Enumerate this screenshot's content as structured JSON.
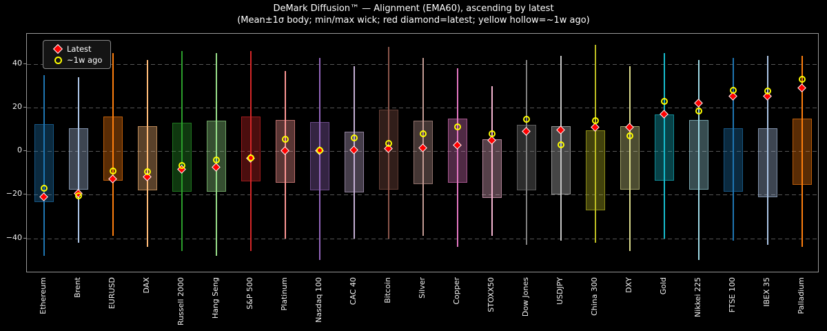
{
  "title": "DeMark Diffusion™ — Alignment (EMA60), ascending by latest",
  "subtitle": "(Mean±1σ body; min/max wick; red diamond=latest; yellow hollow=~1w ago)",
  "legend": {
    "latest_label": "Latest",
    "week_ago_label": "~1w ago"
  },
  "colors": {
    "background": "#000000",
    "text": "#ffffff",
    "grid": "#585858",
    "frame": "#9a9a9a",
    "latest_marker": "#ff0000",
    "latest_marker_edge": "#ffffff",
    "week_ago_marker": "#ffff00"
  },
  "chart_data": {
    "type": "candlestick",
    "title": "DeMark Diffusion™ — Alignment (EMA60), ascending by latest",
    "subtitle": "(Mean±1σ body; min/max wick; red diamond=latest; yellow hollow=~1w ago)",
    "legend_position": "upper left",
    "grid": "dashed horizontal at yticks",
    "ylim": [
      -56,
      54
    ],
    "yticks": [
      {
        "v": 40,
        "label": "40"
      },
      {
        "v": 20,
        "label": "20"
      },
      {
        "v": 0,
        "label": "0"
      },
      {
        "v": -20,
        "label": "−20"
      },
      {
        "v": -40,
        "label": "−40"
      }
    ],
    "series": [
      {
        "name": "Ethereum",
        "color": "#1f77b4",
        "min": -48,
        "max": 35,
        "body_low": -23.5,
        "body_high": 12.5,
        "latest": -21,
        "week_ago": -17
      },
      {
        "name": "Brent",
        "color": "#aec7e8",
        "min": -42,
        "max": 34,
        "body_low": -17.5,
        "body_high": 10.5,
        "latest": -19.5,
        "week_ago": -20.5
      },
      {
        "name": "EURUSD",
        "color": "#ff7f0e",
        "min": -39,
        "max": 45,
        "body_low": -13.5,
        "body_high": 16,
        "latest": -13,
        "week_ago": -9
      },
      {
        "name": "DAX",
        "color": "#ffbb78",
        "min": -44,
        "max": 42,
        "body_low": -18,
        "body_high": 11.5,
        "latest": -12,
        "week_ago": -9.5
      },
      {
        "name": "Russell 2000",
        "color": "#2ca02c",
        "min": -46,
        "max": 46,
        "body_low": -18.5,
        "body_high": 13,
        "latest": -8.5,
        "week_ago": -6.5
      },
      {
        "name": "Hang Seng",
        "color": "#98df8a",
        "min": -48,
        "max": 45,
        "body_low": -18.5,
        "body_high": 14,
        "latest": -7.5,
        "week_ago": -4
      },
      {
        "name": "S&P 500",
        "color": "#d62728",
        "min": -46,
        "max": 46,
        "body_low": -14,
        "body_high": 16,
        "latest": -3.5,
        "week_ago": -3
      },
      {
        "name": "Platinum",
        "color": "#ff9896",
        "min": -40,
        "max": 37,
        "body_low": -14.5,
        "body_high": 14.5,
        "latest": 0,
        "week_ago": 5.5
      },
      {
        "name": "Nasdaq 100",
        "color": "#9467bd",
        "min": -50,
        "max": 43,
        "body_low": -18,
        "body_high": 13.5,
        "latest": 0,
        "week_ago": 0.5
      },
      {
        "name": "CAC 40",
        "color": "#c5b0d5",
        "min": -40,
        "max": 39,
        "body_low": -19,
        "body_high": 9,
        "latest": 0.5,
        "week_ago": 6
      },
      {
        "name": "Bitcoin",
        "color": "#8c564b",
        "min": -40,
        "max": 48,
        "body_low": -17.5,
        "body_high": 19,
        "latest": 1,
        "week_ago": 3.5
      },
      {
        "name": "Silver",
        "color": "#c49c94",
        "min": -39,
        "max": 43,
        "body_low": -15,
        "body_high": 14,
        "latest": 1.5,
        "week_ago": 8
      },
      {
        "name": "Copper",
        "color": "#e377c2",
        "min": -44,
        "max": 38,
        "body_low": -14.5,
        "body_high": 15,
        "latest": 2.5,
        "week_ago": 11
      },
      {
        "name": "STOXX50",
        "color": "#f7b6d2",
        "min": -39,
        "max": 30,
        "body_low": -21.5,
        "body_high": 5.5,
        "latest": 5,
        "week_ago": 8
      },
      {
        "name": "Dow Jones",
        "color": "#7f7f7f",
        "min": -43,
        "max": 42,
        "body_low": -18,
        "body_high": 12,
        "latest": 9,
        "week_ago": 14.5
      },
      {
        "name": "USDJPY",
        "color": "#c7c7c7",
        "min": -41,
        "max": 44,
        "body_low": -20,
        "body_high": 11.5,
        "latest": 9.5,
        "week_ago": 3
      },
      {
        "name": "China 300",
        "color": "#bcbd22",
        "min": -42,
        "max": 49,
        "body_low": -27,
        "body_high": 9.5,
        "latest": 11,
        "week_ago": 14
      },
      {
        "name": "DXY",
        "color": "#dbdb8d",
        "min": -46,
        "max": 39,
        "body_low": -17.5,
        "body_high": 11.5,
        "latest": 11,
        "week_ago": 7
      },
      {
        "name": "Gold",
        "color": "#17becf",
        "min": -40,
        "max": 45,
        "body_low": -13.5,
        "body_high": 17,
        "latest": 17,
        "week_ago": 23
      },
      {
        "name": "Nikkei 225",
        "color": "#9edae5",
        "min": -50,
        "max": 42,
        "body_low": -17.5,
        "body_high": 14.5,
        "latest": 22,
        "week_ago": 18.5
      },
      {
        "name": "FTSE 100",
        "color": "#1f77b4",
        "min": -41,
        "max": 43,
        "body_low": -18.5,
        "body_high": 10.5,
        "latest": 25,
        "week_ago": 28
      },
      {
        "name": "IBEX 35",
        "color": "#aec7e8",
        "min": -43,
        "max": 44,
        "body_low": -21,
        "body_high": 10.5,
        "latest": 25,
        "week_ago": 27.5
      },
      {
        "name": "Palladium",
        "color": "#ff7f0e",
        "min": -44,
        "max": 44,
        "body_low": -15.5,
        "body_high": 15,
        "latest": 29,
        "week_ago": 33
      }
    ]
  }
}
